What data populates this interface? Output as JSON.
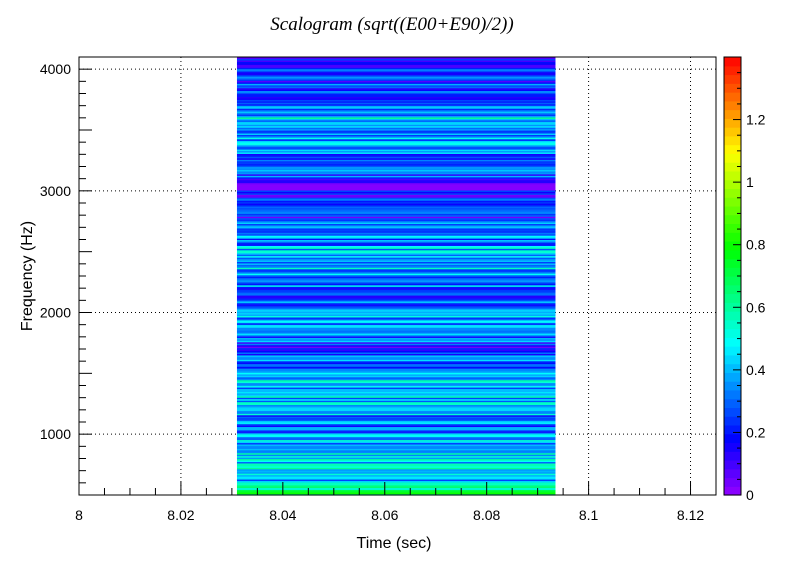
{
  "chart_data": {
    "type": "heatmap",
    "title": "Scalogram (sqrt((E00+E90)/2))",
    "xlabel": "Time (sec)",
    "ylabel": "Frequency (Hz)",
    "xlim": [
      8.0,
      8.125
    ],
    "ylim": [
      500,
      4100
    ],
    "x_ticks": [
      8,
      8.02,
      8.04,
      8.06,
      8.08,
      8.1,
      8.12
    ],
    "x_tick_labels": [
      "8",
      "8.02",
      "8.04",
      "8.06",
      "8.08",
      "8.1",
      "8.12"
    ],
    "y_ticks": [
      1000,
      2000,
      3000,
      4000
    ],
    "y_tick_labels": [
      "1000",
      "2000",
      "3000",
      "4000"
    ],
    "grid": true,
    "data_x_range": [
      8.031,
      8.0935
    ],
    "data_y_range": [
      500,
      4100
    ],
    "colorbar": {
      "range": [
        0,
        1.4
      ],
      "ticks": [
        0,
        0.2,
        0.4,
        0.6,
        0.8,
        1,
        1.2
      ],
      "tick_labels": [
        "0",
        "0.2",
        "0.4",
        "0.6",
        "0.8",
        "1",
        "1.2"
      ],
      "palette": "rainbow"
    },
    "frequency_bands": [
      {
        "f_low": 500,
        "f_high": 540,
        "value": 0.72
      },
      {
        "f_low": 540,
        "f_high": 600,
        "value": 0.55
      },
      {
        "f_low": 600,
        "f_high": 700,
        "value": 0.42
      },
      {
        "f_low": 700,
        "f_high": 850,
        "value": 0.45
      },
      {
        "f_low": 850,
        "f_high": 1000,
        "value": 0.38
      },
      {
        "f_low": 1000,
        "f_high": 1150,
        "value": 0.3
      },
      {
        "f_low": 1150,
        "f_high": 1300,
        "value": 0.4
      },
      {
        "f_low": 1300,
        "f_high": 1500,
        "value": 0.42
      },
      {
        "f_low": 1500,
        "f_high": 1650,
        "value": 0.3
      },
      {
        "f_low": 1650,
        "f_high": 1750,
        "value": 0.2
      },
      {
        "f_low": 1750,
        "f_high": 1900,
        "value": 0.3
      },
      {
        "f_low": 1900,
        "f_high": 2050,
        "value": 0.35
      },
      {
        "f_low": 2050,
        "f_high": 2200,
        "value": 0.3
      },
      {
        "f_low": 2200,
        "f_high": 2350,
        "value": 0.35
      },
      {
        "f_low": 2350,
        "f_high": 2550,
        "value": 0.4
      },
      {
        "f_low": 2550,
        "f_high": 2750,
        "value": 0.33
      },
      {
        "f_low": 2750,
        "f_high": 2950,
        "value": 0.2
      },
      {
        "f_low": 2950,
        "f_high": 3100,
        "value": 0.12
      },
      {
        "f_low": 3100,
        "f_high": 3300,
        "value": 0.25
      },
      {
        "f_low": 3300,
        "f_high": 3500,
        "value": 0.35
      },
      {
        "f_low": 3500,
        "f_high": 3600,
        "value": 0.45
      },
      {
        "f_low": 3600,
        "f_high": 3700,
        "value": 0.35
      },
      {
        "f_low": 3700,
        "f_high": 3850,
        "value": 0.28
      },
      {
        "f_low": 3850,
        "f_high": 4000,
        "value": 0.22
      },
      {
        "f_low": 4000,
        "f_high": 4100,
        "value": 0.18
      }
    ]
  }
}
